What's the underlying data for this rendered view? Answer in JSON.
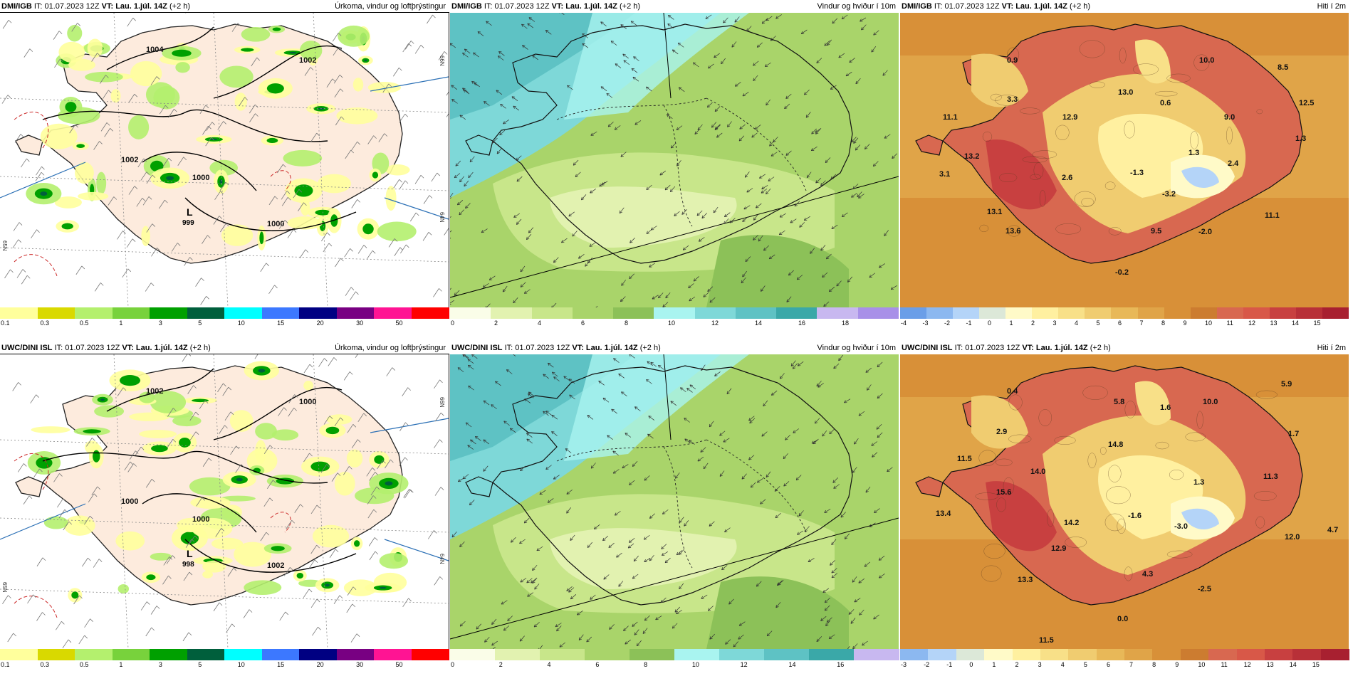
{
  "panels": [
    {
      "source": "DMI/IGB",
      "it": "IT: 01.07.2023 12Z",
      "vt": "VT: Lau. 1.júl. 14Z",
      "offset": "(+2 h)",
      "title": "Úrkoma, vindur og loftþrýstingur",
      "type": "precip",
      "low_letter": "L",
      "low_value": "999",
      "isobars": [
        "1004",
        "1002",
        "1002",
        "1000",
        "1000"
      ],
      "latlabels": [
        "66N",
        "64N",
        "65N"
      ],
      "colorbar": [
        "#ffff9c",
        "#d9d900",
        "#b4f06e",
        "#78d23c",
        "#00a000",
        "#005f3c",
        "#00ffff",
        "#3c78ff",
        "#000082",
        "#780082",
        "#ff1493",
        "#ff0000"
      ],
      "ticks": [
        "0.1",
        "0.3",
        "0.5",
        "1",
        "3",
        "5",
        "10",
        "15",
        "20",
        "30",
        "50"
      ]
    },
    {
      "source": "DMI/IGB",
      "it": "IT: 01.07.2023 12Z",
      "vt": "VT: Lau. 1.júl. 14Z",
      "offset": "(+2 h)",
      "title": "Vindur og hviður í 10m",
      "type": "wind",
      "colorbar": [
        "#fafde8",
        "#e2f2b0",
        "#c8e68a",
        "#a9d46a",
        "#8cc158",
        "#a9f4f0",
        "#7ed8d8",
        "#5ec2c4",
        "#3aa8a8",
        "#c8b8f0",
        "#a890e8"
      ],
      "ticks": [
        "0",
        "2",
        "4",
        "6",
        "8",
        "10",
        "12",
        "14",
        "16",
        "18"
      ]
    },
    {
      "source": "DMI/IGB",
      "it": "IT: 01.07.2023 12Z",
      "vt": "VT: Lau. 1.júl. 14Z",
      "offset": "(+2 h)",
      "title": "Hiti í 2m",
      "type": "temp",
      "labels": [
        "0.9",
        "10.0",
        "8.5",
        "3.3",
        "13.0",
        "12.5",
        "11.1",
        "12.9",
        "0.6",
        "9.0",
        "13.2",
        "1.3",
        "1.3",
        "3.1",
        "2.6",
        "-1.3",
        "2.4",
        "-3.2",
        "13.1",
        "11.1",
        "13.6",
        "9.5",
        "-2.0",
        "-0.2"
      ],
      "colorbar": [
        "#6a9ee8",
        "#8cb8f0",
        "#b4d4f8",
        "#dce8d8",
        "#fffac8",
        "#fff0a0",
        "#f8e088",
        "#f0cc70",
        "#e8b858",
        "#e0a448",
        "#d89038",
        "#cc7c30",
        "#d86850",
        "#d85848",
        "#c84040",
        "#b83038",
        "#a82030"
      ],
      "ticks": [
        "-4",
        "-3",
        "-2",
        "-1",
        "0",
        "1",
        "2",
        "3",
        "4",
        "5",
        "6",
        "7",
        "8",
        "9",
        "10",
        "11",
        "12",
        "13",
        "14",
        "15"
      ]
    },
    {
      "source": "UWC/DINI ISL",
      "it": "IT: 01.07.2023 12Z",
      "vt": "VT: Lau. 1.júl. 14Z",
      "offset": "(+2 h)",
      "title": "Úrkoma, vindur og loftþrýstingur",
      "type": "precip",
      "low_letter": "L",
      "low_value": "998",
      "isobars": [
        "1002",
        "1000",
        "1000",
        "1000",
        "1002"
      ],
      "latlabels": [
        "66N",
        "64N",
        "65N"
      ],
      "colorbar": [
        "#ffff9c",
        "#d9d900",
        "#b4f06e",
        "#78d23c",
        "#00a000",
        "#005f3c",
        "#00ffff",
        "#3c78ff",
        "#000082",
        "#780082",
        "#ff1493",
        "#ff0000"
      ],
      "ticks": [
        "0.1",
        "0.3",
        "0.5",
        "1",
        "3",
        "5",
        "10",
        "15",
        "20",
        "30",
        "50"
      ]
    },
    {
      "source": "UWC/DINI ISL",
      "it": "IT: 01.07.2023 12Z",
      "vt": "VT: Lau. 1.júl. 14Z",
      "offset": "(+2 h)",
      "title": "Vindur og hviður í 10m",
      "type": "wind",
      "colorbar": [
        "#fafde8",
        "#e2f2b0",
        "#c8e68a",
        "#a9d46a",
        "#8cc158",
        "#a9f4f0",
        "#7ed8d8",
        "#5ec2c4",
        "#3aa8a8",
        "#c8b8f0"
      ],
      "ticks": [
        "0",
        "2",
        "4",
        "6",
        "8",
        "10",
        "12",
        "14",
        "16"
      ]
    },
    {
      "source": "UWC/DINI ISL",
      "it": "IT: 01.07.2023 12Z",
      "vt": "VT: Lau. 1.júl. 14Z",
      "offset": "(+2 h)",
      "title": "Hiti í 2m",
      "type": "temp",
      "labels": [
        "0.4",
        "5.9",
        "5.8",
        "1.6",
        "10.0",
        "2.9",
        "14.8",
        "1.7",
        "11.5",
        "14.0",
        "1.3",
        "11.3",
        "15.6",
        "13.4",
        "14.2",
        "-1.6",
        "-3.0",
        "12.0",
        "4.7",
        "12.9",
        "4.3",
        "13.3",
        "-2.5",
        "0.0",
        "11.5"
      ],
      "colorbar": [
        "#8cb8f0",
        "#b4d4f8",
        "#dce8d8",
        "#fffac8",
        "#fff0a0",
        "#f8e088",
        "#f0cc70",
        "#e8b858",
        "#e0a448",
        "#d89038",
        "#cc7c30",
        "#d86850",
        "#d85848",
        "#c84040",
        "#b83038",
        "#a82030"
      ],
      "ticks": [
        "-3",
        "-2",
        "-1",
        "0",
        "1",
        "2",
        "3",
        "4",
        "5",
        "6",
        "7",
        "8",
        "9",
        "10",
        "11",
        "12",
        "13",
        "14",
        "15"
      ]
    }
  ]
}
